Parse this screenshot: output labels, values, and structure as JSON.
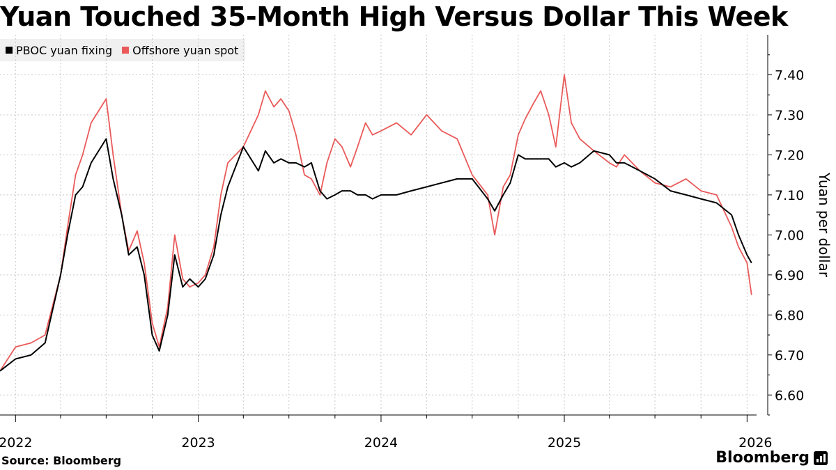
{
  "title": "Yuan Touched 35-Month High Versus Dollar This Week",
  "source": "Source: Bloomberg",
  "brand": "Bloomberg",
  "chart_data": {
    "type": "line",
    "title": "Yuan Touched 35-Month High Versus Dollar This Week",
    "ylabel": "Yuan per dollar",
    "xlabel": "",
    "ylim": [
      6.55,
      7.5
    ],
    "xlim": [
      "2021-12-01",
      "2026-01-20"
    ],
    "y_ticks": [
      "6.60",
      "6.70",
      "6.80",
      "6.90",
      "7.00",
      "7.10",
      "7.20",
      "7.30",
      "7.40"
    ],
    "x_ticks": [
      "2022",
      "2023",
      "2024",
      "2025",
      "2026"
    ],
    "grid": true,
    "legend_position": "top-left",
    "x": [
      "2021-12-01",
      "2022-01-01",
      "2022-02-01",
      "2022-03-01",
      "2022-04-01",
      "2022-04-15",
      "2022-05-01",
      "2022-05-15",
      "2022-06-01",
      "2022-07-01",
      "2022-07-15",
      "2022-08-01",
      "2022-08-15",
      "2022-09-01",
      "2022-09-15",
      "2022-10-01",
      "2022-10-15",
      "2022-11-01",
      "2022-11-15",
      "2022-12-01",
      "2022-12-15",
      "2023-01-01",
      "2023-01-15",
      "2023-02-01",
      "2023-02-15",
      "2023-03-01",
      "2023-04-01",
      "2023-05-01",
      "2023-05-15",
      "2023-06-01",
      "2023-06-15",
      "2023-07-01",
      "2023-07-15",
      "2023-08-01",
      "2023-08-15",
      "2023-09-01",
      "2023-09-15",
      "2023-10-01",
      "2023-10-15",
      "2023-11-01",
      "2023-11-15",
      "2023-12-01",
      "2023-12-15",
      "2024-01-01",
      "2024-02-01",
      "2024-03-01",
      "2024-04-01",
      "2024-05-01",
      "2024-06-01",
      "2024-07-01",
      "2024-08-01",
      "2024-08-15",
      "2024-09-01",
      "2024-09-15",
      "2024-10-01",
      "2024-10-15",
      "2024-11-01",
      "2024-11-15",
      "2024-12-01",
      "2024-12-15",
      "2025-01-01",
      "2025-01-15",
      "2025-02-01",
      "2025-03-01",
      "2025-04-01",
      "2025-04-15",
      "2025-05-01",
      "2025-06-01",
      "2025-07-01",
      "2025-08-01",
      "2025-09-01",
      "2025-10-01",
      "2025-11-01",
      "2025-12-01",
      "2025-12-15",
      "2026-01-01",
      "2026-01-10"
    ],
    "series": [
      {
        "name": "PBOC yuan fixing",
        "color": "#000000",
        "values": [
          6.66,
          6.69,
          6.7,
          6.73,
          6.9,
          7.0,
          7.1,
          7.12,
          7.18,
          7.24,
          7.14,
          7.05,
          6.95,
          6.97,
          6.9,
          6.75,
          6.71,
          6.8,
          6.95,
          6.87,
          6.89,
          6.87,
          6.89,
          6.95,
          7.05,
          7.12,
          7.22,
          7.16,
          7.21,
          7.18,
          7.19,
          7.18,
          7.18,
          7.17,
          7.18,
          7.11,
          7.09,
          7.1,
          7.11,
          7.11,
          7.1,
          7.1,
          7.09,
          7.1,
          7.1,
          7.11,
          7.12,
          7.13,
          7.14,
          7.14,
          7.09,
          7.06,
          7.1,
          7.13,
          7.2,
          7.19,
          7.19,
          7.19,
          7.19,
          7.17,
          7.18,
          7.17,
          7.18,
          7.21,
          7.2,
          7.18,
          7.18,
          7.16,
          7.14,
          7.11,
          7.1,
          7.09,
          7.08,
          7.05,
          7.0,
          6.95,
          6.93
        ]
      },
      {
        "name": "Offshore yuan spot",
        "color": "#ea5a5a",
        "values": [
          6.66,
          6.72,
          6.73,
          6.75,
          6.9,
          7.02,
          7.15,
          7.2,
          7.28,
          7.34,
          7.2,
          7.05,
          6.96,
          7.01,
          6.93,
          6.78,
          6.72,
          6.82,
          7.0,
          6.89,
          6.87,
          6.88,
          6.9,
          6.97,
          7.1,
          7.18,
          7.22,
          7.3,
          7.36,
          7.32,
          7.34,
          7.31,
          7.25,
          7.15,
          7.14,
          7.1,
          7.18,
          7.24,
          7.22,
          7.17,
          7.22,
          7.28,
          7.25,
          7.26,
          7.28,
          7.25,
          7.3,
          7.26,
          7.24,
          7.15,
          7.1,
          7.0,
          7.12,
          7.15,
          7.25,
          7.29,
          7.33,
          7.36,
          7.3,
          7.22,
          7.4,
          7.28,
          7.24,
          7.21,
          7.18,
          7.17,
          7.2,
          7.16,
          7.13,
          7.12,
          7.14,
          7.11,
          7.1,
          7.02,
          6.97,
          6.93,
          6.85
        ]
      }
    ]
  }
}
